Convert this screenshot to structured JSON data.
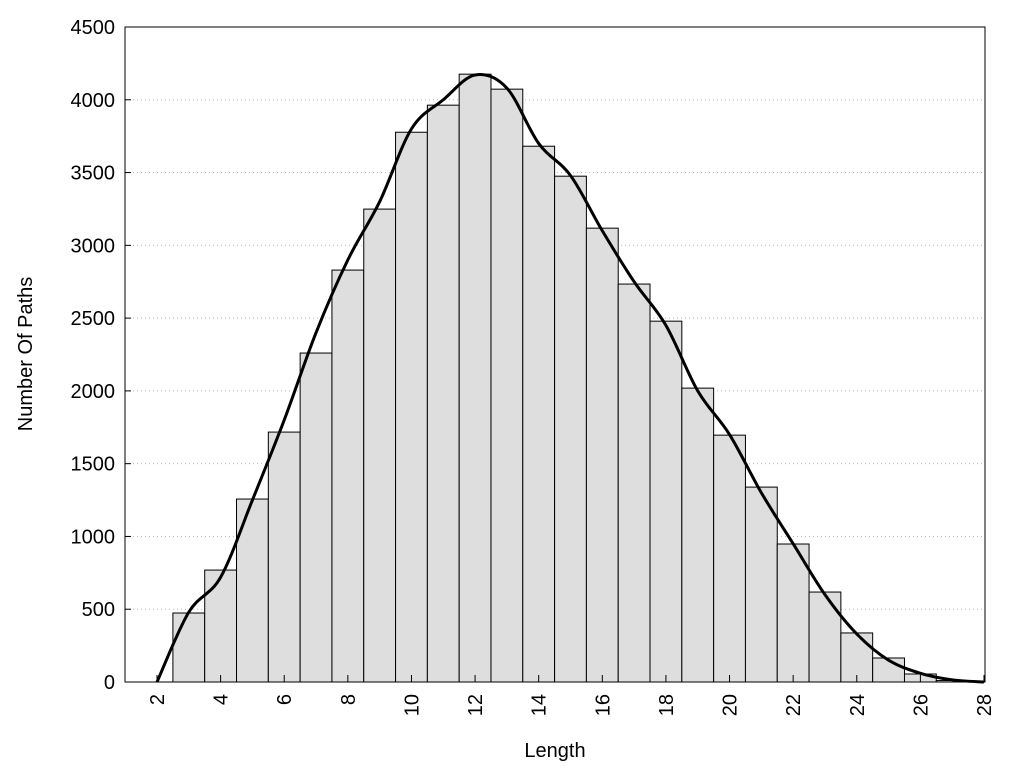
{
  "chart_data": {
    "type": "bar",
    "title": "",
    "xlabel": "Length",
    "ylabel": "Number Of Paths",
    "xlim": [
      1,
      28
    ],
    "ylim": [
      0,
      4500
    ],
    "xticks": [
      2,
      4,
      6,
      8,
      10,
      12,
      14,
      16,
      18,
      20,
      22,
      24,
      26,
      28
    ],
    "yticks": [
      0,
      500,
      1000,
      1500,
      2000,
      2500,
      3000,
      3500,
      4000,
      4500
    ],
    "grid": "horizontal dotted",
    "legend": "none",
    "bar_color": "#dedede",
    "categories": [
      3,
      4,
      5,
      6,
      7,
      8,
      9,
      10,
      11,
      12,
      13,
      14,
      15,
      16,
      17,
      18,
      19,
      20,
      21,
      22,
      23,
      24,
      25,
      26,
      27
    ],
    "values": [
      474,
      769,
      1257,
      1717,
      2260,
      2830,
      3249,
      3777,
      3963,
      4176,
      4073,
      3681,
      3475,
      3118,
      2734,
      2479,
      2019,
      1696,
      1339,
      948,
      618,
      337,
      165,
      55,
      10
    ],
    "curve": {
      "type": "line",
      "color": "#000000",
      "x": [
        2,
        3,
        4,
        5,
        6,
        7,
        8,
        9,
        10,
        11,
        12,
        13,
        14,
        15,
        16,
        17,
        18,
        19,
        20,
        21,
        22,
        23,
        24,
        25,
        26,
        27,
        28
      ],
      "y": [
        0,
        480,
        720,
        1250,
        1800,
        2400,
        2900,
        3300,
        3800,
        4000,
        4170,
        4080,
        3700,
        3480,
        3100,
        2750,
        2450,
        2000,
        1700,
        1300,
        950,
        600,
        330,
        150,
        60,
        15,
        0
      ]
    }
  }
}
